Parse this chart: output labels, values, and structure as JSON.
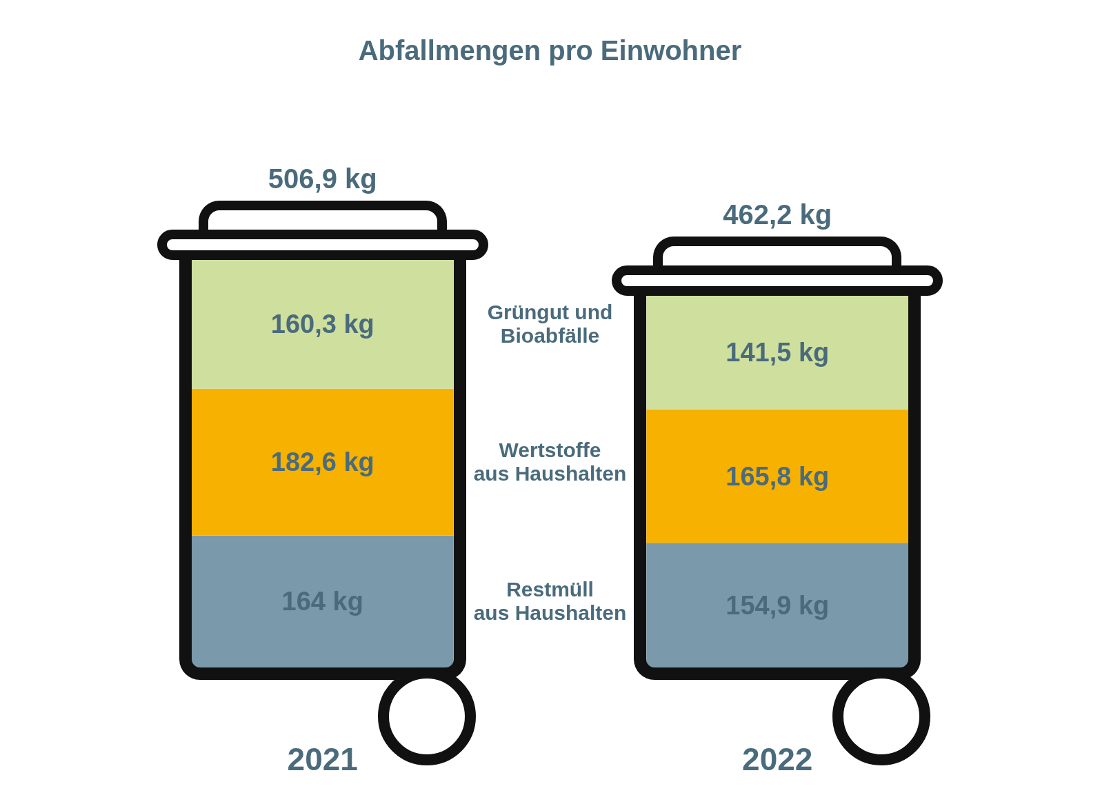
{
  "chart_data": {
    "type": "bar",
    "stacked": true,
    "title": "Abfallmengen pro Einwohner",
    "categories": [
      "2021",
      "2022"
    ],
    "series": [
      {
        "name": "Restmüll\naus Haushalten",
        "color": "#7a9aab",
        "values": [
          164,
          154.9
        ],
        "value_labels": [
          "164 kg",
          "154,9 kg"
        ]
      },
      {
        "name": "Wertstoffe\naus Haushalten",
        "color": "#f7b100",
        "values": [
          182.6,
          165.8
        ],
        "value_labels": [
          "182,6 kg",
          "165,8 kg"
        ]
      },
      {
        "name": "Grüngut und\nBioabfälle",
        "color": "#cfdf9e",
        "values": [
          160.3,
          141.5
        ],
        "value_labels": [
          "160,3 kg",
          "141,5 kg"
        ]
      }
    ],
    "totals": [
      "506,9 kg",
      "462,2 kg"
    ]
  }
}
